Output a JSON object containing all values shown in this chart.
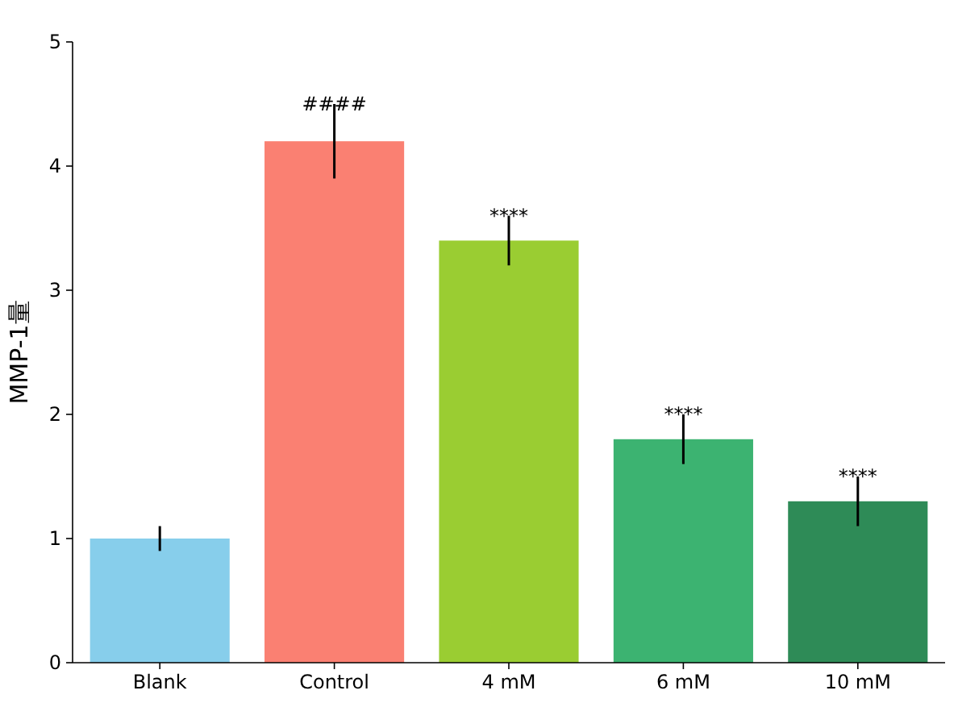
{
  "chart_data": {
    "type": "bar",
    "ylabel": "MMP-1量",
    "categories": [
      "Blank",
      "Control",
      "4 mM",
      "6 mM",
      "10 mM"
    ],
    "values": [
      1.0,
      4.2,
      3.4,
      1.8,
      1.3
    ],
    "errors": [
      0.1,
      0.3,
      0.2,
      0.2,
      0.2
    ],
    "colors": [
      "#87ceeb",
      "#fa8072",
      "#9acd32",
      "#3cb371",
      "#2e8b57"
    ],
    "ylim": [
      0,
      5
    ],
    "yticks": [
      0,
      1,
      2,
      3,
      4,
      5
    ],
    "annotations": [
      {
        "text": "####",
        "x": "Control",
        "y": 4.5
      },
      {
        "text": "****",
        "x": "4 mM",
        "y": 3.6
      },
      {
        "text": "****",
        "x": "6 mM",
        "y": 2.0
      },
      {
        "text": "****",
        "x": "10 mM",
        "y": 1.5
      }
    ]
  }
}
